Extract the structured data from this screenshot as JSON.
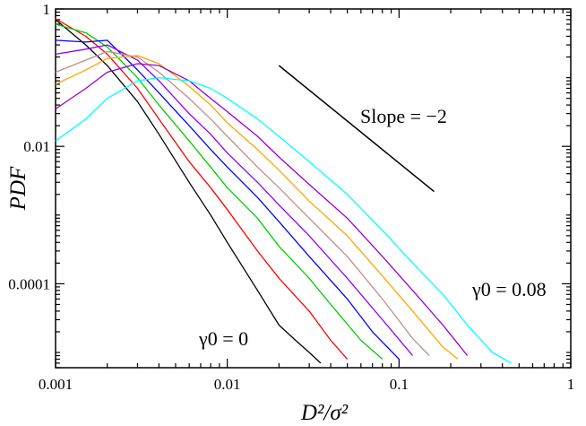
{
  "chart_data": {
    "type": "line",
    "xscale": "log",
    "yscale": "log",
    "xlim": [
      0.001,
      1
    ],
    "ylim": [
      6e-06,
      1
    ],
    "grid": false,
    "legend": "none",
    "xlabel": "D²/σ²",
    "ylabel": "PDF",
    "x_ticks": [
      {
        "value": 0.001,
        "label": "0.001"
      },
      {
        "value": 0.01,
        "label": "0.01"
      },
      {
        "value": 0.1,
        "label": "0.1"
      },
      {
        "value": 1,
        "label": "1"
      }
    ],
    "y_ticks": [
      {
        "value": 1,
        "label": "1"
      },
      {
        "value": 0.01,
        "label": "0.01"
      },
      {
        "value": 0.0001,
        "label": "0.0001"
      }
    ],
    "annotations": {
      "slope": "Slope = −2",
      "gamma_low": "γ0 = 0",
      "gamma_high": "γ0 = 0.08"
    },
    "reference_line": {
      "x": [
        0.02,
        0.16
      ],
      "y": [
        0.15,
        0.0022
      ]
    },
    "series": [
      {
        "color": "#000000",
        "x": [
          0.001,
          0.0015,
          0.002,
          0.003,
          0.004,
          0.006,
          0.008,
          0.01,
          0.015,
          0.02,
          0.025,
          0.03,
          0.035
        ],
        "y": [
          0.7,
          0.3,
          0.15,
          0.045,
          0.015,
          0.003,
          0.001,
          0.0004,
          8e-05,
          2.5e-05,
          1.5e-05,
          1e-05,
          7e-06
        ]
      },
      {
        "color": "#ff0000",
        "x": [
          0.001,
          0.0015,
          0.002,
          0.003,
          0.004,
          0.006,
          0.008,
          0.01,
          0.015,
          0.02,
          0.03,
          0.04,
          0.05
        ],
        "y": [
          0.72,
          0.4,
          0.22,
          0.07,
          0.025,
          0.006,
          0.0025,
          0.0012,
          0.0003,
          0.00012,
          4e-05,
          1.5e-05,
          8e-06
        ]
      },
      {
        "color": "#00cc00",
        "x": [
          0.001,
          0.0015,
          0.002,
          0.003,
          0.004,
          0.006,
          0.008,
          0.01,
          0.015,
          0.02,
          0.03,
          0.04,
          0.06,
          0.08
        ],
        "y": [
          0.6,
          0.45,
          0.28,
          0.1,
          0.04,
          0.012,
          0.005,
          0.0025,
          0.0009,
          0.00035,
          0.00012,
          5e-05,
          1.5e-05,
          8e-06
        ]
      },
      {
        "color": "#0000ff",
        "x": [
          0.001,
          0.0015,
          0.002,
          0.003,
          0.004,
          0.006,
          0.008,
          0.01,
          0.015,
          0.02,
          0.03,
          0.05,
          0.07,
          0.1
        ],
        "y": [
          0.35,
          0.33,
          0.35,
          0.13,
          0.06,
          0.02,
          0.009,
          0.005,
          0.0018,
          0.0008,
          0.00025,
          6e-05,
          2e-05,
          8e-06
        ]
      },
      {
        "color": "#8b00ff",
        "x": [
          0.001,
          0.0015,
          0.002,
          0.003,
          0.004,
          0.006,
          0.008,
          0.01,
          0.015,
          0.02,
          0.03,
          0.05,
          0.08,
          0.12
        ],
        "y": [
          0.22,
          0.26,
          0.3,
          0.18,
          0.09,
          0.03,
          0.015,
          0.008,
          0.003,
          0.0014,
          0.0005,
          0.00012,
          3e-05,
          9e-06
        ]
      },
      {
        "color": "#bc8f8f",
        "x": [
          0.001,
          0.0015,
          0.002,
          0.003,
          0.004,
          0.006,
          0.008,
          0.01,
          0.015,
          0.02,
          0.03,
          0.05,
          0.08,
          0.12,
          0.15
        ],
        "y": [
          0.12,
          0.18,
          0.24,
          0.2,
          0.12,
          0.05,
          0.025,
          0.014,
          0.005,
          0.0025,
          0.0009,
          0.00025,
          6e-05,
          1.6e-05,
          9e-06
        ]
      },
      {
        "color": "#ffa500",
        "x": [
          0.001,
          0.0015,
          0.002,
          0.003,
          0.004,
          0.006,
          0.008,
          0.01,
          0.015,
          0.02,
          0.03,
          0.05,
          0.08,
          0.12,
          0.18,
          0.22
        ],
        "y": [
          0.08,
          0.13,
          0.19,
          0.21,
          0.16,
          0.075,
          0.04,
          0.022,
          0.009,
          0.0045,
          0.0016,
          0.0005,
          0.00013,
          4e-05,
          1.2e-05,
          8e-06
        ]
      },
      {
        "color": "#9400d3",
        "x": [
          0.001,
          0.0015,
          0.002,
          0.003,
          0.004,
          0.006,
          0.008,
          0.01,
          0.015,
          0.02,
          0.03,
          0.05,
          0.08,
          0.12,
          0.18,
          0.25
        ],
        "y": [
          0.035,
          0.07,
          0.12,
          0.16,
          0.15,
          0.09,
          0.05,
          0.032,
          0.014,
          0.007,
          0.0028,
          0.0009,
          0.00025,
          8e-05,
          2.5e-05,
          9e-06
        ]
      },
      {
        "color": "#00ffff",
        "x": [
          0.001,
          0.0015,
          0.002,
          0.003,
          0.004,
          0.006,
          0.008,
          0.01,
          0.015,
          0.02,
          0.03,
          0.05,
          0.08,
          0.12,
          0.18,
          0.25,
          0.35,
          0.45
        ],
        "y": [
          0.012,
          0.025,
          0.05,
          0.09,
          0.1,
          0.09,
          0.07,
          0.05,
          0.025,
          0.014,
          0.006,
          0.002,
          0.0006,
          0.0002,
          7e-05,
          2.5e-05,
          1e-05,
          7e-06
        ]
      }
    ]
  }
}
